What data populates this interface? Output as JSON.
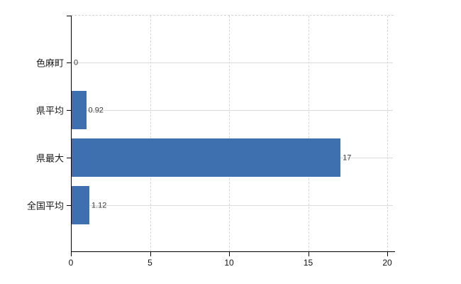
{
  "chart_data": {
    "type": "bar",
    "orientation": "horizontal",
    "categories": [
      "色麻町",
      "県平均",
      "県最大",
      "全国平均"
    ],
    "values": [
      0,
      0.92,
      17,
      1.12
    ],
    "value_labels": [
      "0",
      "0.92",
      "17",
      "1.12"
    ],
    "x_ticks": [
      0,
      5,
      10,
      15,
      20
    ],
    "xlim": [
      0,
      20.4
    ],
    "grid": true,
    "legend": "none",
    "title": "",
    "bar_color": "#3e6fae",
    "h_gridline_color": "#d9ddd9",
    "v_gridline_color": "#d6d6d6",
    "axis_color": "#000000",
    "value_label_color": "#3a3a3a",
    "category_label_color": "#1a1a1a"
  }
}
